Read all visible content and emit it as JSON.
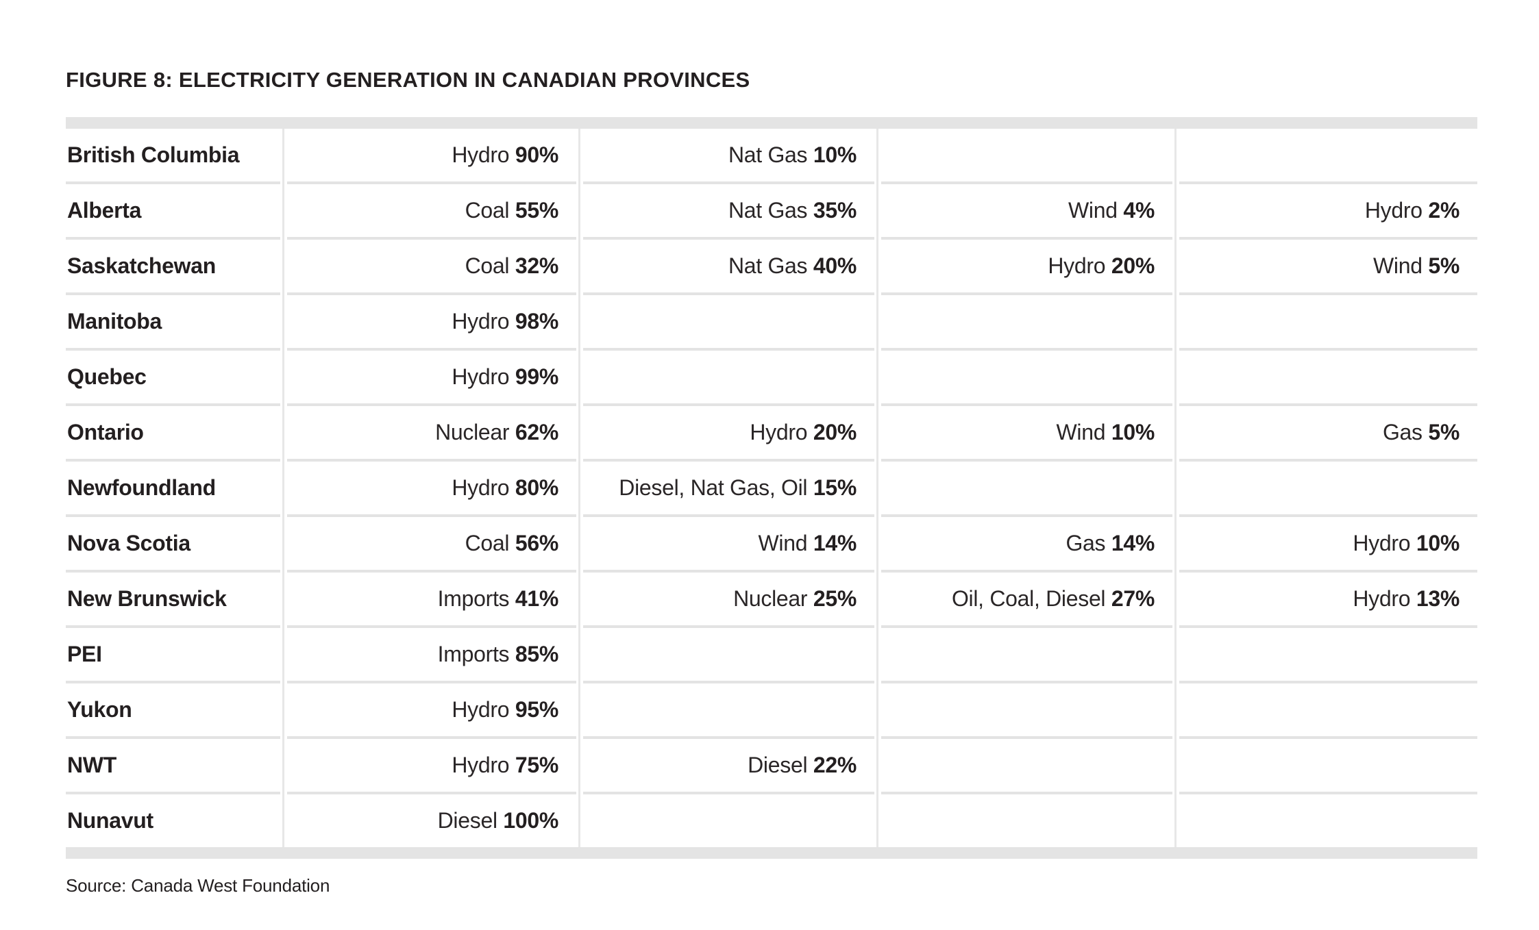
{
  "title": "FIGURE 8: ELECTRICITY GENERATION IN CANADIAN PROVINCES",
  "source": "Source: Canada West Foundation",
  "colors": {
    "text": "#231f20",
    "cap_bar": "#e4e4e4",
    "row_line": "#e3e3e3",
    "column_line": "#e7e7e7",
    "background": "#ffffff"
  },
  "table": {
    "rows": [
      {
        "province": "British Columbia",
        "cells": [
          {
            "label": "Hydro",
            "value": "90%"
          },
          {
            "label": "Nat Gas",
            "value": "10%"
          },
          null,
          null
        ]
      },
      {
        "province": "Alberta",
        "cells": [
          {
            "label": "Coal",
            "value": "55%"
          },
          {
            "label": "Nat Gas",
            "value": "35%"
          },
          {
            "label": "Wind",
            "value": "4%"
          },
          {
            "label": "Hydro",
            "value": "2%"
          }
        ]
      },
      {
        "province": "Saskatchewan",
        "cells": [
          {
            "label": "Coal",
            "value": "32%"
          },
          {
            "label": "Nat Gas",
            "value": "40%"
          },
          {
            "label": "Hydro",
            "value": "20%"
          },
          {
            "label": "Wind",
            "value": "5%"
          }
        ]
      },
      {
        "province": "Manitoba",
        "cells": [
          {
            "label": "Hydro",
            "value": "98%"
          },
          null,
          null,
          null
        ]
      },
      {
        "province": "Quebec",
        "cells": [
          {
            "label": "Hydro",
            "value": "99%"
          },
          null,
          null,
          null
        ]
      },
      {
        "province": "Ontario",
        "cells": [
          {
            "label": "Nuclear",
            "value": "62%"
          },
          {
            "label": "Hydro",
            "value": "20%"
          },
          {
            "label": "Wind",
            "value": "10%"
          },
          {
            "label": "Gas",
            "value": "5%"
          }
        ]
      },
      {
        "province": "Newfoundland",
        "cells": [
          {
            "label": "Hydro",
            "value": "80%"
          },
          {
            "label": "Diesel, Nat Gas, Oil",
            "value": "15%"
          },
          null,
          null
        ]
      },
      {
        "province": "Nova Scotia",
        "cells": [
          {
            "label": "Coal",
            "value": "56%"
          },
          {
            "label": "Wind",
            "value": "14%"
          },
          {
            "label": "Gas",
            "value": "14%"
          },
          {
            "label": "Hydro",
            "value": "10%"
          }
        ]
      },
      {
        "province": "New Brunswick",
        "cells": [
          {
            "label": "Imports",
            "value": "41%"
          },
          {
            "label": "Nuclear",
            "value": "25%"
          },
          {
            "label": "Oil, Coal, Diesel",
            "value": "27%"
          },
          {
            "label": "Hydro",
            "value": "13%"
          }
        ]
      },
      {
        "province": "PEI",
        "cells": [
          {
            "label": "Imports",
            "value": "85%"
          },
          null,
          null,
          null
        ]
      },
      {
        "province": "Yukon",
        "cells": [
          {
            "label": "Hydro",
            "value": "95%"
          },
          null,
          null,
          null
        ]
      },
      {
        "province": "NWT",
        "cells": [
          {
            "label": "Hydro",
            "value": "75%"
          },
          {
            "label": "Diesel",
            "value": "22%"
          },
          null,
          null
        ]
      },
      {
        "province": "Nunavut",
        "cells": [
          {
            "label": "Diesel",
            "value": "100%"
          },
          null,
          null,
          null
        ]
      }
    ]
  },
  "chart_data": {
    "type": "table",
    "title": "FIGURE 8: ELECTRICITY GENERATION IN CANADIAN PROVINCES",
    "source": "Canada West Foundation",
    "unit": "percent of electricity generation",
    "rows": [
      {
        "province": "British Columbia",
        "mix": {
          "Hydro": 90,
          "Nat Gas": 10
        }
      },
      {
        "province": "Alberta",
        "mix": {
          "Coal": 55,
          "Nat Gas": 35,
          "Wind": 4,
          "Hydro": 2
        }
      },
      {
        "province": "Saskatchewan",
        "mix": {
          "Coal": 32,
          "Nat Gas": 40,
          "Hydro": 20,
          "Wind": 5
        }
      },
      {
        "province": "Manitoba",
        "mix": {
          "Hydro": 98
        }
      },
      {
        "province": "Quebec",
        "mix": {
          "Hydro": 99
        }
      },
      {
        "province": "Ontario",
        "mix": {
          "Nuclear": 62,
          "Hydro": 20,
          "Wind": 10,
          "Gas": 5
        }
      },
      {
        "province": "Newfoundland",
        "mix": {
          "Hydro": 80,
          "Diesel, Nat Gas, Oil": 15
        }
      },
      {
        "province": "Nova Scotia",
        "mix": {
          "Coal": 56,
          "Wind": 14,
          "Gas": 14,
          "Hydro": 10
        }
      },
      {
        "province": "New Brunswick",
        "mix": {
          "Imports": 41,
          "Nuclear": 25,
          "Oil, Coal, Diesel": 27,
          "Hydro": 13
        }
      },
      {
        "province": "PEI",
        "mix": {
          "Imports": 85
        }
      },
      {
        "province": "Yukon",
        "mix": {
          "Hydro": 95
        }
      },
      {
        "province": "NWT",
        "mix": {
          "Hydro": 75,
          "Diesel": 22
        }
      },
      {
        "province": "Nunavut",
        "mix": {
          "Diesel": 100
        }
      }
    ]
  }
}
